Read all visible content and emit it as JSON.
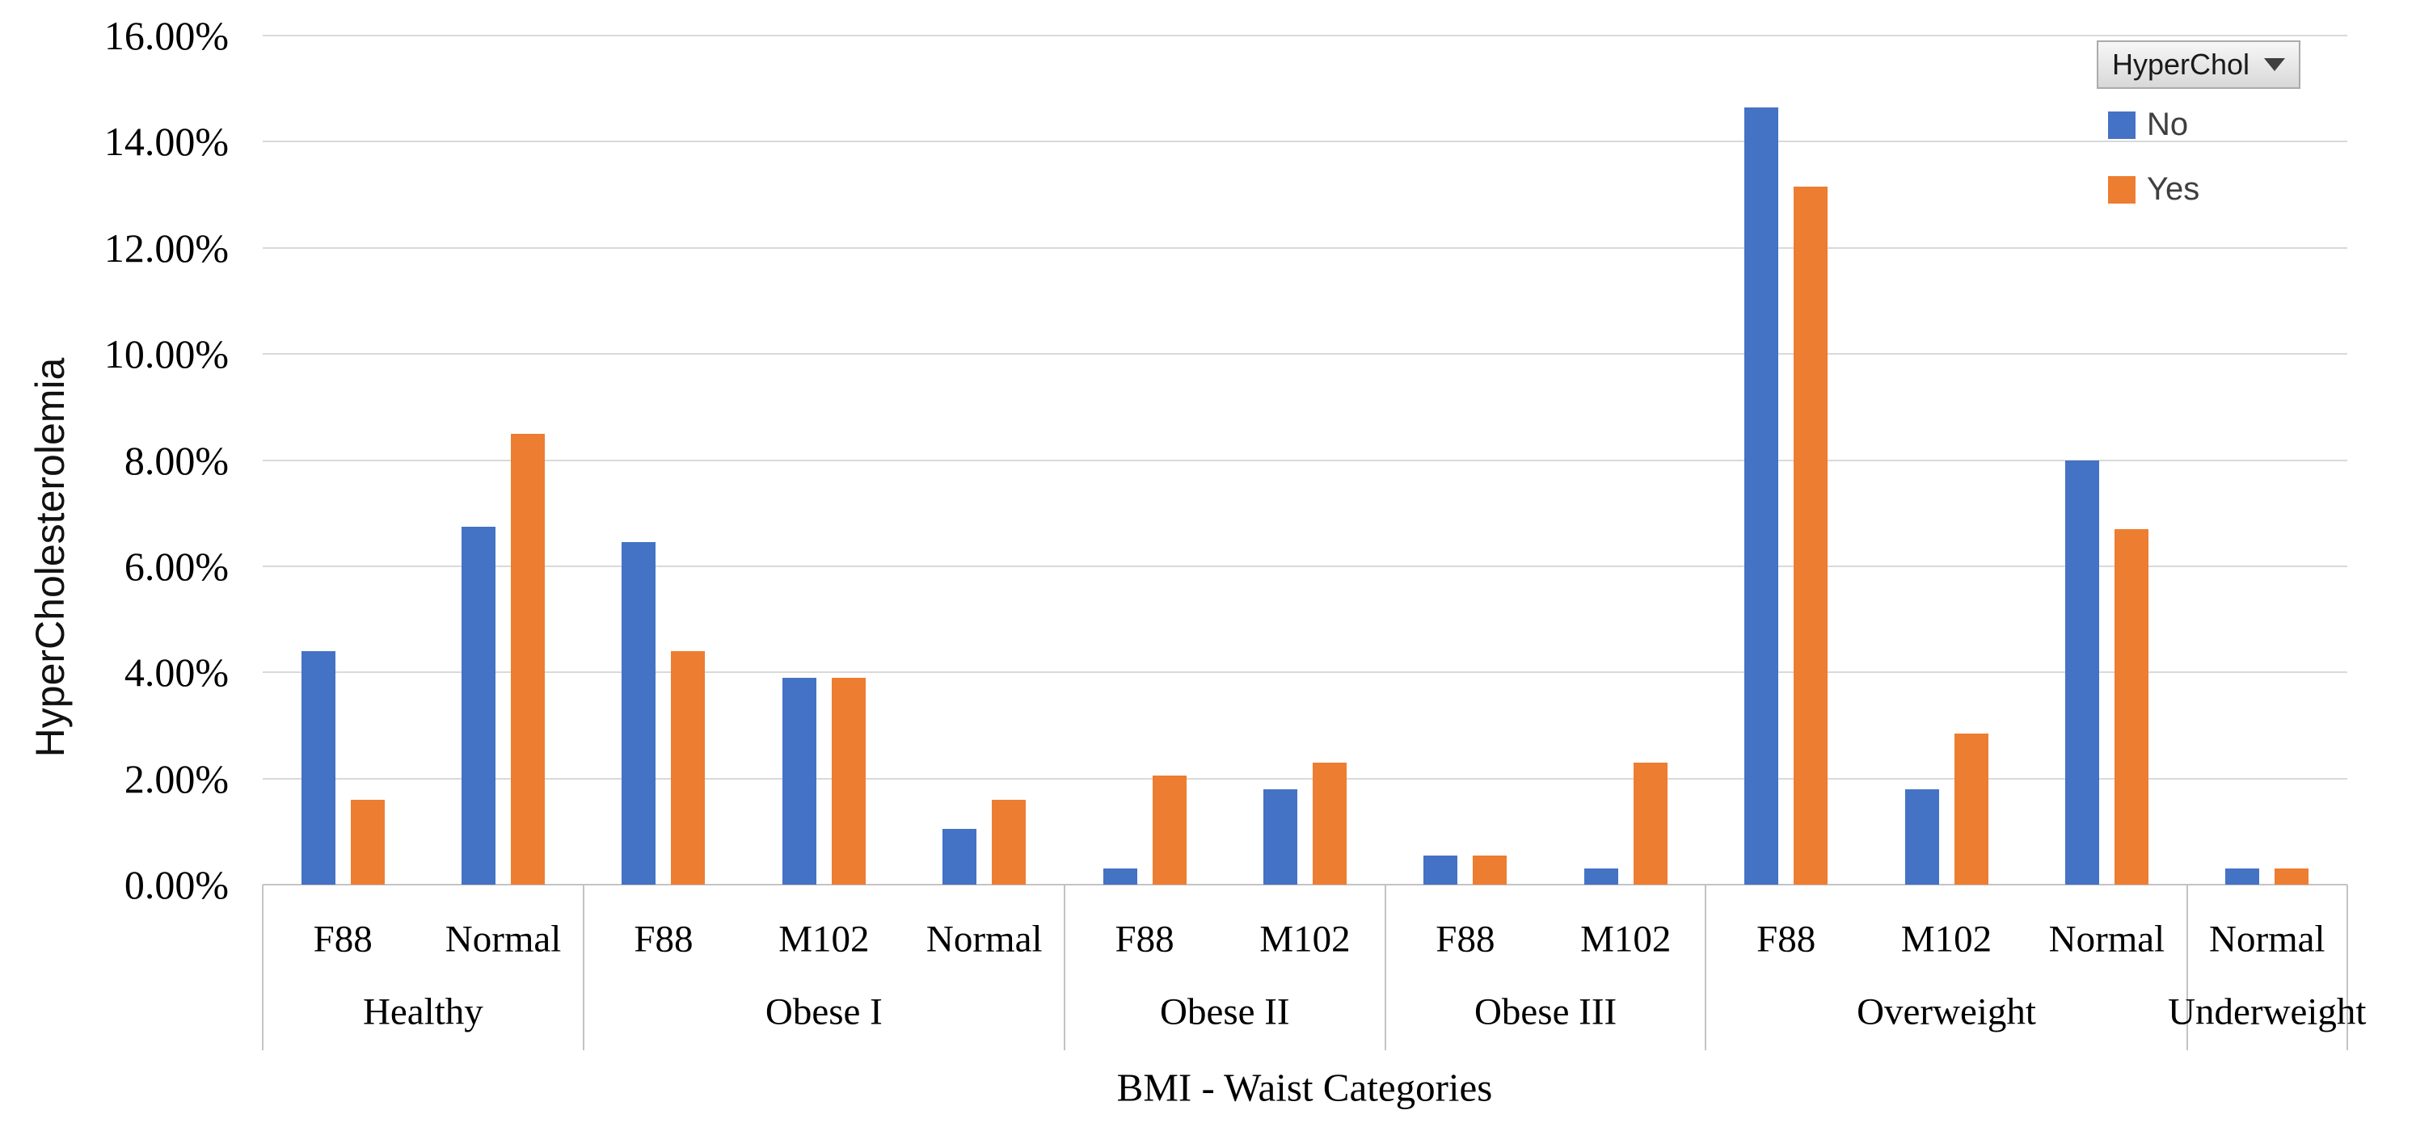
{
  "legend": {
    "field_button_label": "HyperChol",
    "items": [
      {
        "label": "No",
        "color": "#4472C4"
      },
      {
        "label": "Yes",
        "color": "#ED7D31"
      }
    ]
  },
  "y_axis": {
    "title": "HyperCholesterolemia",
    "tick_labels": [
      "16.00%",
      "14.00%",
      "12.00%",
      "10.00%",
      "8.00%",
      "6.00%",
      "4.00%",
      "2.00%",
      "0.00%"
    ]
  },
  "x_axis": {
    "title": "BMI - Waist Categories"
  },
  "chart_data": {
    "type": "bar",
    "title": "",
    "xlabel": "BMI - Waist Categories",
    "ylabel": "HyperCholesterolemia",
    "ylim": [
      0,
      16
    ],
    "y_tick_step": 2,
    "y_tick_format": "0.00%",
    "grid": true,
    "legend_position": "top-right",
    "groups": [
      {
        "label": "Healthy",
        "categories": [
          "F88",
          "Normal"
        ]
      },
      {
        "label": "Obese I",
        "categories": [
          "F88",
          "M102",
          "Normal"
        ]
      },
      {
        "label": "Obese II",
        "categories": [
          "F88",
          "M102"
        ]
      },
      {
        "label": "Obese III",
        "categories": [
          "F88",
          "M102"
        ]
      },
      {
        "label": "Overweight",
        "categories": [
          "F88",
          "M102",
          "Normal"
        ]
      },
      {
        "label": "Underweight",
        "categories": [
          "Normal"
        ]
      }
    ],
    "series": [
      {
        "name": "No",
        "color": "#4472C4",
        "values": [
          4.4,
          6.75,
          6.45,
          3.9,
          1.05,
          0.3,
          1.8,
          0.55,
          0.3,
          14.65,
          1.8,
          8.0,
          0.3
        ]
      },
      {
        "name": "Yes",
        "color": "#ED7D31",
        "values": [
          1.6,
          8.5,
          4.4,
          3.9,
          1.6,
          2.05,
          2.3,
          0.55,
          2.3,
          13.15,
          2.85,
          6.7,
          0.3
        ]
      }
    ]
  }
}
